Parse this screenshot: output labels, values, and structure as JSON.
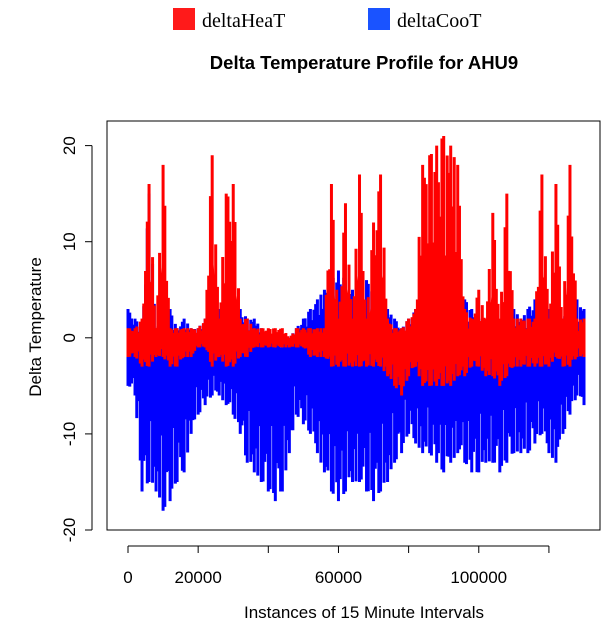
{
  "chart_data": {
    "type": "line",
    "title": "Delta Temperature Profile for AHU9",
    "xlabel": "Instances of 15 Minute Intervals",
    "ylabel": "Delta Temperature",
    "xlim": [
      0,
      130000
    ],
    "ylim": [
      -20,
      21
    ],
    "x_ticks": [
      0,
      20000,
      60000,
      100000
    ],
    "x_tick_labels": [
      "0",
      "20000",
      "60000",
      "100000"
    ],
    "x_minor_ticks": [
      40000,
      80000,
      120000
    ],
    "y_ticks": [
      -20,
      -10,
      0,
      10,
      20
    ],
    "y_tick_labels": [
      "-20",
      "-10",
      "0",
      "10",
      "20"
    ],
    "grid": false,
    "legend_position": "top-center",
    "series": [
      {
        "name": "deltaCooT",
        "color": "#0000ff",
        "swatch_color": "#1a53ff",
        "x": [
          0,
          2000,
          4000,
          6000,
          8000,
          10000,
          12000,
          14000,
          16000,
          18000,
          20000,
          22000,
          24000,
          26000,
          28000,
          30000,
          32000,
          34000,
          36000,
          38000,
          40000,
          42000,
          44000,
          46000,
          48000,
          50000,
          52000,
          54000,
          56000,
          58000,
          60000,
          62000,
          64000,
          66000,
          68000,
          70000,
          72000,
          74000,
          76000,
          78000,
          80000,
          82000,
          84000,
          86000,
          88000,
          90000,
          92000,
          94000,
          96000,
          98000,
          100000,
          102000,
          104000,
          106000,
          108000,
          110000,
          112000,
          114000,
          116000,
          118000,
          120000,
          122000,
          124000,
          126000,
          128000,
          130000
        ],
        "max": [
          3,
          2,
          1,
          15,
          1,
          2,
          3,
          1,
          2,
          1,
          1,
          2,
          2,
          3,
          2,
          3,
          3,
          2,
          2,
          1,
          0,
          -1,
          -1,
          0,
          1,
          2,
          3,
          4,
          5,
          6,
          7,
          6,
          5,
          7,
          6,
          5,
          4,
          3,
          2,
          1,
          2,
          3,
          4,
          5,
          6,
          7,
          6,
          5,
          4,
          3,
          2,
          1,
          2,
          1,
          2,
          3,
          2,
          3,
          4,
          2,
          3,
          2,
          2,
          3,
          4,
          3
        ],
        "min": [
          -5,
          -6,
          -16,
          -15,
          -16,
          -18,
          -17,
          -15,
          -14,
          -10,
          -8,
          -7,
          -6,
          -6,
          -7,
          -8,
          -10,
          -13,
          -14,
          -15,
          -16,
          -17,
          -16,
          -12,
          -8,
          -9,
          -10,
          -12,
          -14,
          -16,
          -17,
          -16,
          -15,
          -15,
          -16,
          -17,
          -16,
          -15,
          -13,
          -12,
          -10,
          -11,
          -12,
          -12,
          -13,
          -14,
          -13,
          -12,
          -13,
          -14,
          -14,
          -13,
          -13,
          -14,
          -13,
          -12,
          -12,
          -12,
          -11,
          -10,
          -12,
          -13,
          -10,
          -8,
          -6,
          -7
        ]
      },
      {
        "name": "deltaHeaT",
        "color": "#ff0000",
        "swatch_color": "#ff1a1a",
        "x": [
          0,
          2000,
          4000,
          6000,
          8000,
          10000,
          12000,
          14000,
          16000,
          18000,
          20000,
          22000,
          24000,
          26000,
          28000,
          30000,
          32000,
          34000,
          36000,
          38000,
          40000,
          42000,
          44000,
          46000,
          48000,
          50000,
          52000,
          54000,
          56000,
          58000,
          60000,
          62000,
          64000,
          66000,
          68000,
          70000,
          72000,
          74000,
          76000,
          78000,
          80000,
          82000,
          84000,
          86000,
          88000,
          90000,
          92000,
          94000,
          96000,
          98000,
          100000,
          102000,
          104000,
          106000,
          108000,
          110000,
          112000,
          114000,
          116000,
          118000,
          120000,
          122000,
          124000,
          126000,
          128000,
          130000
        ],
        "max": [
          1,
          1,
          2,
          16,
          1,
          18,
          1,
          1,
          1,
          1,
          1,
          2,
          19,
          2,
          15,
          16,
          2,
          2,
          1,
          1,
          1,
          1,
          1,
          0,
          1,
          1,
          1,
          1,
          1,
          16,
          2,
          14,
          2,
          17,
          2,
          12,
          17,
          2,
          1,
          1,
          2,
          3,
          18,
          19,
          20,
          21,
          20,
          18,
          3,
          2,
          5,
          2,
          13,
          2,
          15,
          2,
          2,
          2,
          2,
          17,
          2,
          16,
          2,
          18,
          2,
          2
        ],
        "min": [
          -2,
          -2,
          -3,
          -3,
          -2,
          -2,
          -3,
          -3,
          -2,
          -2,
          -1,
          -1,
          -3,
          -2,
          -3,
          -3,
          -2,
          -2,
          -1,
          -1,
          -1,
          -1,
          -1,
          -1,
          -1,
          -1,
          -2,
          -2,
          -2,
          -3,
          -3,
          -3,
          -3,
          -3,
          -3,
          -3,
          -3,
          -4,
          -5,
          -6,
          -4,
          -3,
          -5,
          -5,
          -5,
          -5,
          -5,
          -4,
          -4,
          -3,
          -3,
          -4,
          -4,
          -5,
          -4,
          -3,
          -3,
          -3,
          -3,
          -3,
          -3,
          -2,
          -3,
          -3,
          -2,
          -2
        ]
      }
    ]
  }
}
